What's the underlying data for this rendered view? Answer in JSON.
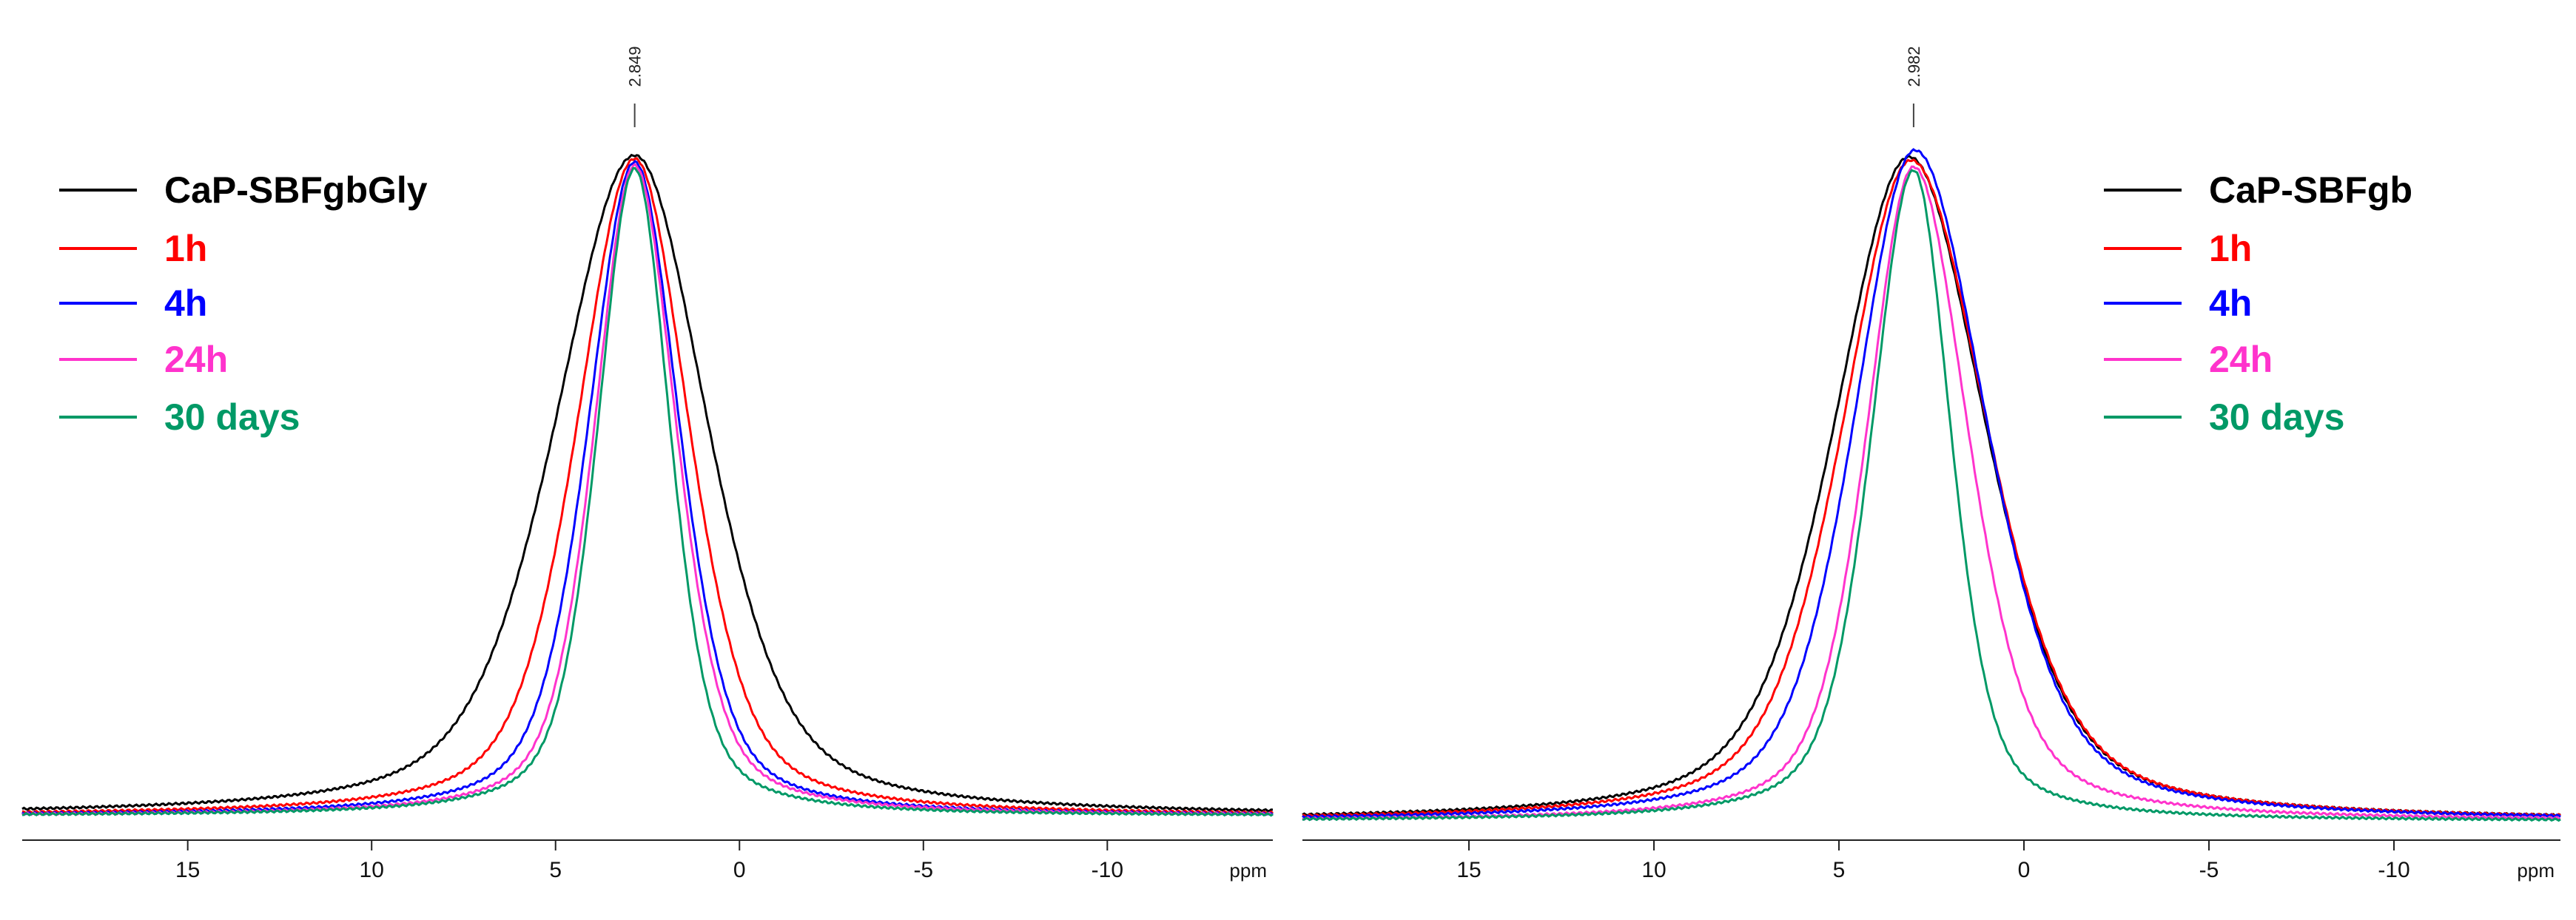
{
  "chart_data": [
    {
      "type": "line",
      "xlabel": "ppm",
      "x_reversed": true,
      "xlim": [
        19.5,
        -14.5
      ],
      "x_ticks": [
        "15",
        "10",
        "5",
        "0",
        "-5",
        "-10"
      ],
      "peak_label": "2.849",
      "peak_position": 2.849,
      "grid": false,
      "legend_placement": "top-left",
      "series": [
        {
          "name": "CaP-SBFgbGly",
          "color": "#000000",
          "center": 2.849,
          "hwhm_left": 2.55,
          "hwhm_right": 2.35,
          "peak": 1.0
        },
        {
          "name": "1h",
          "color": "#ff0000",
          "center": 2.849,
          "hwhm_left": 1.85,
          "hwhm_right": 1.75,
          "peak": 0.995
        },
        {
          "name": "4h",
          "color": "#0000ff",
          "center": 2.849,
          "hwhm_left": 1.5,
          "hwhm_right": 1.45,
          "peak": 0.99
        },
        {
          "name": "24h",
          "color": "#ff33cc",
          "center": 2.849,
          "hwhm_left": 1.3,
          "hwhm_right": 1.35,
          "peak": 0.985
        },
        {
          "name": "30 days",
          "color": "#009966",
          "center": 2.849,
          "hwhm_left": 1.2,
          "hwhm_right": 1.15,
          "peak": 0.98
        }
      ]
    },
    {
      "type": "line",
      "xlabel": "ppm",
      "x_reversed": true,
      "xlim": [
        19.5,
        -14.5
      ],
      "x_ticks": [
        "15",
        "10",
        "5",
        "0",
        "-5",
        "-10"
      ],
      "peak_label": "2.982",
      "peak_position": 2.982,
      "grid": false,
      "legend_placement": "top-right",
      "series": [
        {
          "name": "CaP-SBFgb",
          "color": "#000000",
          "center": 3.1,
          "hwhm_left": 2.4,
          "hwhm_right": 2.45,
          "peak": 0.99
        },
        {
          "name": "1h",
          "color": "#ff0000",
          "center": 3.05,
          "hwhm_left": 2.2,
          "hwhm_right": 2.45,
          "peak": 0.985
        },
        {
          "name": "4h",
          "color": "#0000ff",
          "center": 2.95,
          "hwhm_left": 1.95,
          "hwhm_right": 2.3,
          "peak": 1.0
        },
        {
          "name": "24h",
          "color": "#ff33cc",
          "center": 2.982,
          "hwhm_left": 1.5,
          "hwhm_right": 1.75,
          "peak": 0.975
        },
        {
          "name": "30 days",
          "color": "#009966",
          "center": 2.982,
          "hwhm_left": 1.35,
          "hwhm_right": 1.2,
          "peak": 0.97
        }
      ]
    }
  ]
}
